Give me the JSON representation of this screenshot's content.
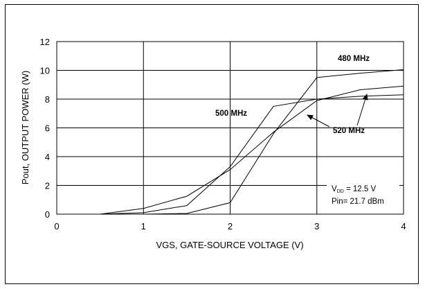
{
  "chart_data": {
    "type": "line",
    "xlabel": "VGS, GATE-SOURCE VOLTAGE (V)",
    "ylabel": "Pout, OUTPUT POWER (W)",
    "xlim": [
      0,
      4
    ],
    "ylim": [
      0,
      12
    ],
    "x_ticks": [
      "0",
      "1",
      "2",
      "3",
      "4"
    ],
    "y_ticks": [
      "0",
      "2",
      "4",
      "6",
      "8",
      "10",
      "12"
    ],
    "grid": true,
    "series": [
      {
        "name": "480 MHz",
        "x": [
          0.5,
          1.0,
          1.5,
          2.0,
          2.5,
          3.0,
          3.5,
          4.0
        ],
        "y": [
          0.0,
          0.0,
          0.05,
          0.8,
          5.6,
          9.5,
          9.8,
          10.05
        ]
      },
      {
        "name": "500 MHz",
        "x": [
          0.5,
          1.0,
          1.5,
          2.0,
          2.5,
          3.0,
          3.5,
          4.0
        ],
        "y": [
          0.0,
          0.1,
          0.6,
          3.3,
          7.5,
          8.0,
          8.2,
          8.3
        ]
      },
      {
        "name": "520 MHz",
        "x": [
          0.5,
          1.0,
          1.5,
          2.0,
          2.5,
          3.0,
          3.5,
          4.0
        ],
        "y": [
          0.0,
          0.4,
          1.25,
          3.1,
          5.7,
          7.9,
          8.65,
          8.9
        ]
      }
    ],
    "annotations": {
      "label_480": "480 MHz",
      "label_500": "500 MHz",
      "label_520": "520 MHz",
      "vdd_prefix": "V",
      "vdd_sub": "DD",
      "vdd_value": " = 12.5 V",
      "pin": "Pin= 21.7 dBm"
    }
  }
}
